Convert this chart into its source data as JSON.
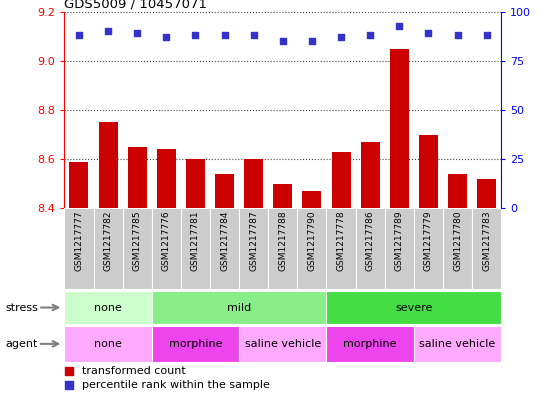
{
  "title": "GDS5009 / 10457071",
  "samples": [
    "GSM1217777",
    "GSM1217782",
    "GSM1217785",
    "GSM1217776",
    "GSM1217781",
    "GSM1217784",
    "GSM1217787",
    "GSM1217788",
    "GSM1217790",
    "GSM1217778",
    "GSM1217786",
    "GSM1217789",
    "GSM1217779",
    "GSM1217780",
    "GSM1217783"
  ],
  "transformed_count": [
    8.59,
    8.75,
    8.65,
    8.64,
    8.6,
    8.54,
    8.6,
    8.5,
    8.47,
    8.63,
    8.67,
    9.05,
    8.7,
    8.54,
    8.52
  ],
  "percentile_rank": [
    88,
    90,
    89,
    87,
    88,
    88,
    88,
    85,
    85,
    87,
    88,
    93,
    89,
    88,
    88
  ],
  "ylim_left": [
    8.4,
    9.2
  ],
  "ylim_right": [
    0,
    100
  ],
  "yticks_left": [
    8.4,
    8.6,
    8.8,
    9.0,
    9.2
  ],
  "yticks_right": [
    0,
    25,
    50,
    75,
    100
  ],
  "bar_color": "#cc0000",
  "dot_color": "#3333cc",
  "stress_groups": [
    {
      "label": "none",
      "start": 0,
      "end": 3,
      "color": "#ccffcc"
    },
    {
      "label": "mild",
      "start": 3,
      "end": 9,
      "color": "#88ee88"
    },
    {
      "label": "severe",
      "start": 9,
      "end": 15,
      "color": "#44dd44"
    }
  ],
  "agent_groups": [
    {
      "label": "none",
      "start": 0,
      "end": 3,
      "color": "#ffaaff"
    },
    {
      "label": "morphine",
      "start": 3,
      "end": 6,
      "color": "#ee44ee"
    },
    {
      "label": "saline vehicle",
      "start": 6,
      "end": 9,
      "color": "#ffaaff"
    },
    {
      "label": "morphine",
      "start": 9,
      "end": 12,
      "color": "#ee44ee"
    },
    {
      "label": "saline vehicle",
      "start": 12,
      "end": 15,
      "color": "#ffaaff"
    }
  ],
  "tick_bg_color": "#cccccc",
  "dotted_line_color": "#444444",
  "legend_entries": [
    {
      "label": "transformed count",
      "color": "#cc0000"
    },
    {
      "label": "percentile rank within the sample",
      "color": "#3333cc"
    }
  ],
  "bg_color": "#ffffff"
}
